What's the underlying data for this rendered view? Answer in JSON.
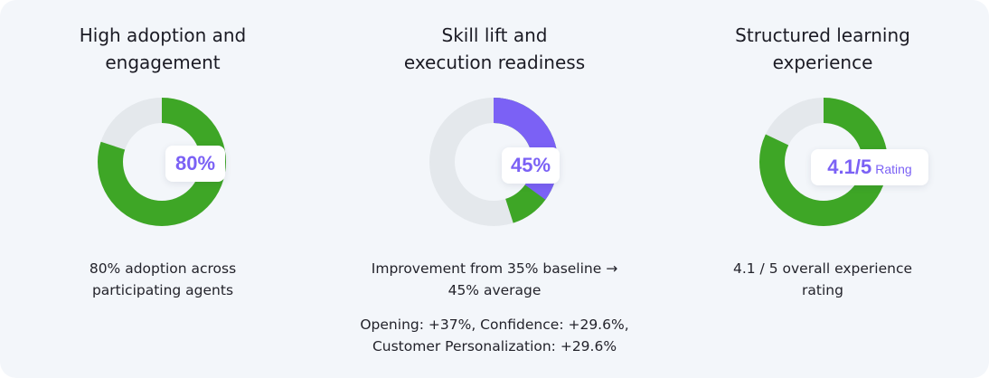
{
  "colors": {
    "panel_bg": "#f3f6fa",
    "green": "#3ea626",
    "purple": "#7b61f5",
    "track": "#e4e8ec",
    "text": "#1b1b24"
  },
  "columns": [
    {
      "title": "High adoption and\nengagement",
      "value_text": "80%",
      "unit_text": "",
      "fraction": 0.8,
      "description": "80% adoption across\nparticipating agents",
      "extra": ""
    },
    {
      "title": "Skill lift and\nexecution readiness",
      "value_text": "45%",
      "unit_text": "",
      "baseline_fraction": 0.35,
      "fraction": 0.45,
      "description": "Improvement from 35% baseline →\n45% average",
      "extra": "Opening: +37%, Confidence: +29.6%,\nCustomer Personalization: +29.6%"
    },
    {
      "title": "Structured learning\nexperience",
      "value_text": "4.1/5",
      "unit_text": "Rating",
      "fraction": 0.82,
      "description": "4.1 / 5 overall experience\nrating",
      "extra": ""
    }
  ]
}
